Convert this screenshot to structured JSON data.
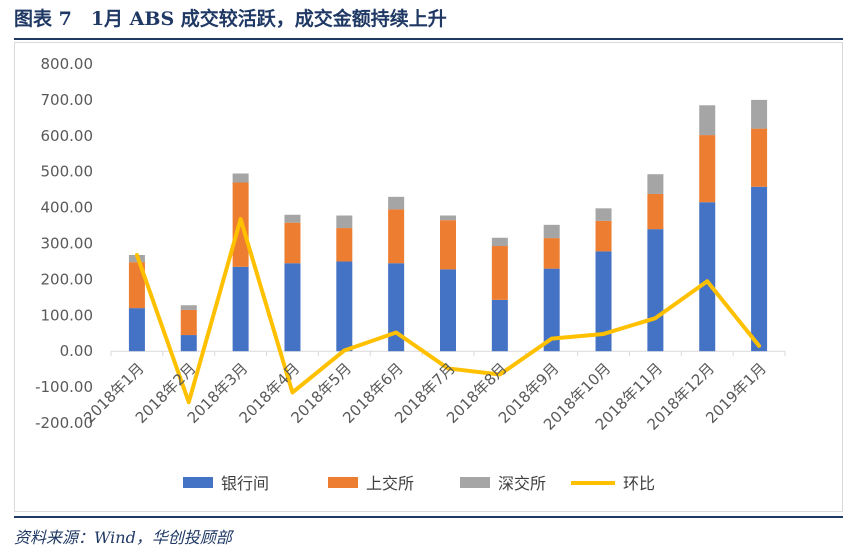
{
  "figure_title": "图表 7　1月 ABS 成交较活跃，成交金额持续上升",
  "source": "资料来源：Wind，华创投顾部",
  "colors": {
    "bank": "#4472c4",
    "sse": "#ed7d31",
    "szse": "#a5a5a5",
    "mom": "#ffc000",
    "title": "#1f3864"
  },
  "chart_data": {
    "type": "bar",
    "stacked": true,
    "categories": [
      "2018年1月",
      "2018年2月",
      "2018年3月",
      "2018年4月",
      "2018年5月",
      "2018年6月",
      "2018年7月",
      "2018年8月",
      "2018年9月",
      "2018年10月",
      "2018年11月",
      "2018年12月",
      "2019年1月"
    ],
    "series": [
      {
        "name": "银行间",
        "type": "bar",
        "values": [
          120,
          45,
          235,
          245,
          250,
          245,
          228,
          143,
          230,
          278,
          340,
          415,
          458
        ]
      },
      {
        "name": "上交所",
        "type": "bar",
        "values": [
          128,
          70,
          235,
          113,
          93,
          150,
          137,
          150,
          85,
          85,
          98,
          187,
          162
        ]
      },
      {
        "name": "深交所",
        "type": "bar",
        "values": [
          20,
          13,
          25,
          22,
          35,
          35,
          13,
          23,
          37,
          35,
          55,
          83,
          80
        ]
      },
      {
        "name": "环比",
        "type": "line",
        "values": [
          268,
          -142,
          368,
          -115,
          2,
          52,
          -48,
          -65,
          35,
          48,
          92,
          195,
          15
        ]
      }
    ],
    "yticks": [
      "800.00",
      "700.00",
      "600.00",
      "500.00",
      "400.00",
      "300.00",
      "200.00",
      "100.00",
      "0.00",
      "-100.00",
      "-200.00"
    ],
    "ylim": [
      -200,
      800
    ],
    "legend_position": "bottom"
  }
}
